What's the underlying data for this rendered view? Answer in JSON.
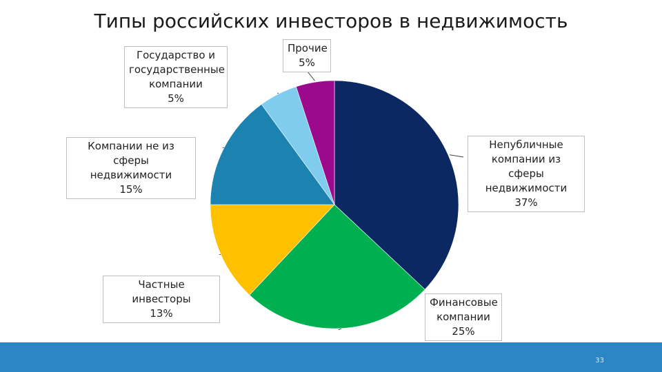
{
  "slide": {
    "title": "Типы российских инвесторов в недвижимость",
    "page_number": "33",
    "footer_color": "#2a86c4"
  },
  "chart_data": {
    "type": "pie",
    "title": "Типы российских инвесторов в недвижимость",
    "unit": "%",
    "slices": [
      {
        "label_lines": [
          "Непубличные",
          "компании из сферы",
          "недвижимости"
        ],
        "value": 37,
        "value_label": "37%",
        "color": "#0c2862"
      },
      {
        "label_lines": [
          "Финансовые",
          "компании"
        ],
        "value": 25,
        "value_label": "25%",
        "color": "#00b050"
      },
      {
        "label_lines": [
          "Частные инвесторы"
        ],
        "value": 13,
        "value_label": "13%",
        "color": "#ffc000"
      },
      {
        "label_lines": [
          "Компании не из",
          "сферы недвижимости"
        ],
        "value": 15,
        "value_label": "15%",
        "color": "#1c82b0"
      },
      {
        "label_lines": [
          "Государство и",
          "государственные",
          "компании"
        ],
        "value": 5,
        "value_label": "5%",
        "color": "#7fccee"
      },
      {
        "label_lines": [
          "Прочие"
        ],
        "value": 5,
        "value_label": "5%",
        "color": "#9b0a8c"
      }
    ]
  }
}
